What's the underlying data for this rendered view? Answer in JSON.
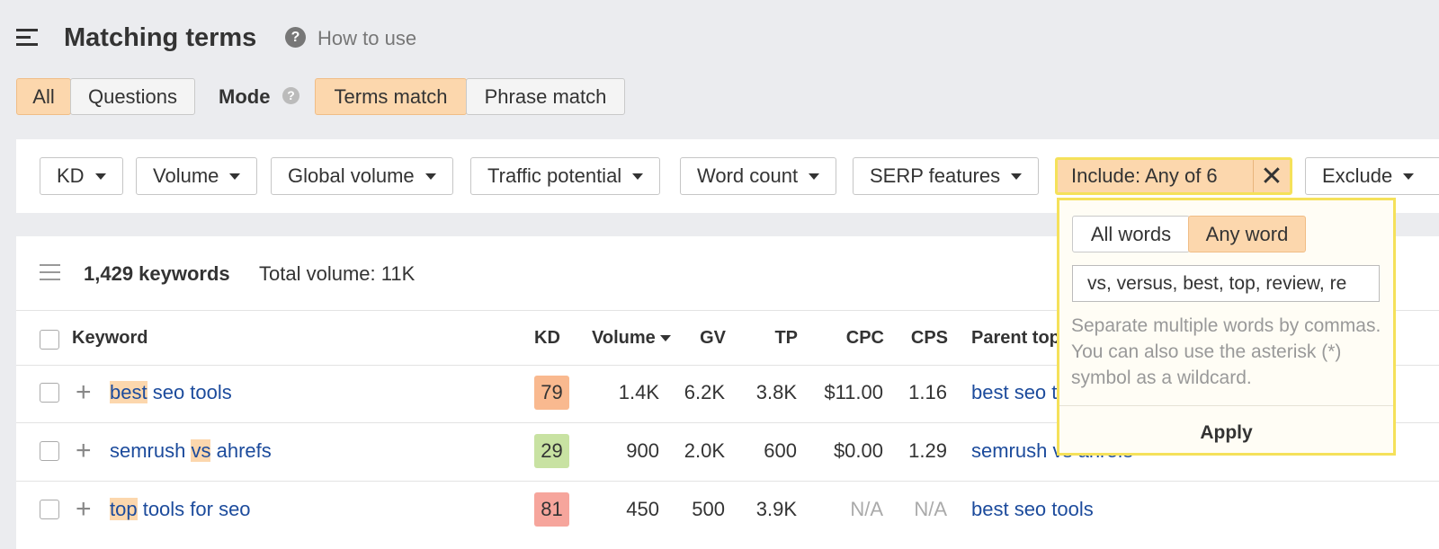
{
  "header": {
    "title": "Matching terms",
    "help": "How to use"
  },
  "tabs": [
    "All",
    "Questions"
  ],
  "mode": {
    "label": "Mode",
    "options": [
      "Terms match",
      "Phrase match"
    ]
  },
  "filters": [
    "KD",
    "Volume",
    "Global volume",
    "Traffic potential",
    "Word count",
    "SERP features"
  ],
  "include": "Include: Any of 6",
  "exclude": "Exclude",
  "popup": {
    "toggle": [
      "All words",
      "Any word"
    ],
    "input": "vs, versus, best, top, review, re",
    "hint": "Separate multiple words by commas. You can also use the asterisk (*) symbol as a wildcard.",
    "apply": "Apply"
  },
  "summary": {
    "count": "1,429 keywords",
    "total": "Total volume: 11K"
  },
  "table": {
    "columns": [
      "Keyword",
      "KD",
      "Volume",
      "GV",
      "TP",
      "CPC",
      "CPS",
      "Parent topic"
    ],
    "rows": [
      {
        "keyword": [
          {
            "text": "best",
            "match": true
          },
          {
            "text": " seo tools",
            "match": false
          }
        ],
        "kd": 79,
        "kd_color": "#f9b98f",
        "volume": "1.4K",
        "gv": "6.2K",
        "tp": "3.8K",
        "cpc": "$11.00",
        "cps": "1.16",
        "parent": "best seo tools"
      },
      {
        "keyword": [
          {
            "text": "semrush ",
            "match": false
          },
          {
            "text": "vs",
            "match": true
          },
          {
            "text": " ahrefs",
            "match": false
          }
        ],
        "kd": 29,
        "kd_color": "#c8e2a2",
        "volume": "900",
        "gv": "2.0K",
        "tp": "600",
        "cpc": "$0.00",
        "cps": "1.29",
        "parent": "semrush vs ahrefs"
      },
      {
        "keyword": [
          {
            "text": "top",
            "match": true
          },
          {
            "text": " tools for seo",
            "match": false
          }
        ],
        "kd": 81,
        "kd_color": "#f6a59c",
        "volume": "450",
        "gv": "500",
        "tp": "3.9K",
        "cpc": "N/A",
        "cps": "N/A",
        "parent": "best seo tools"
      }
    ]
  }
}
